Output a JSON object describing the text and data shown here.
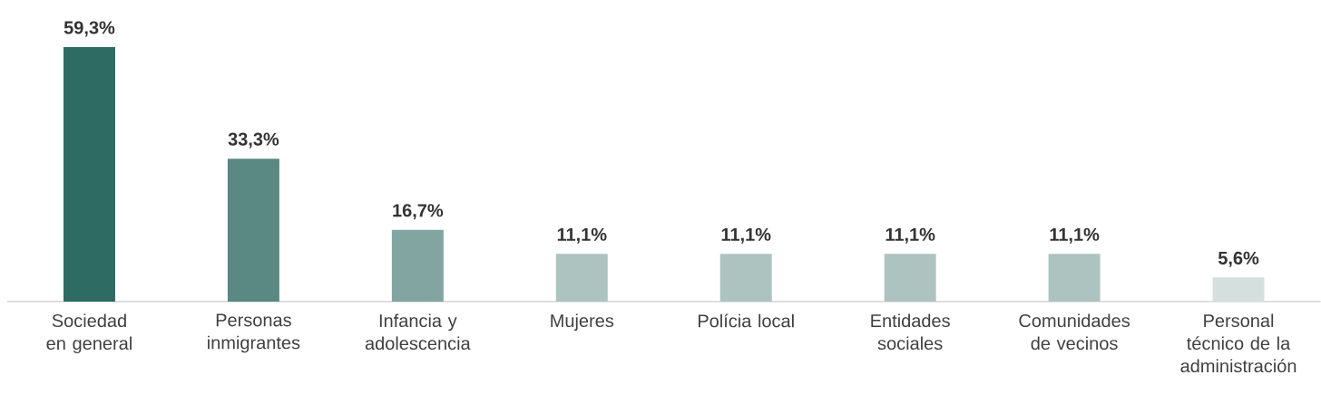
{
  "chart_data": {
    "type": "bar",
    "categories": [
      "Sociedad en general",
      "Personas inmigrantes",
      "Infancia y adolescencia",
      "Mujeres",
      "Polícia local",
      "Entidades sociales",
      "Comunidades de vecinos",
      "Personal técnico de la administración"
    ],
    "values": [
      59.3,
      33.3,
      16.7,
      11.1,
      11.1,
      11.1,
      11.1,
      5.6
    ],
    "value_labels": [
      "59,3%",
      "33,3%",
      "16,7%",
      "11,1%",
      "11,1%",
      "11,1%",
      "11,1%",
      "5,6%"
    ],
    "colors": [
      "#2e6b62",
      "#5a8882",
      "#82a5a1",
      "#adc3bf",
      "#adc3bf",
      "#adc3bf",
      "#adc3bf",
      "#d5e0de"
    ]
  }
}
